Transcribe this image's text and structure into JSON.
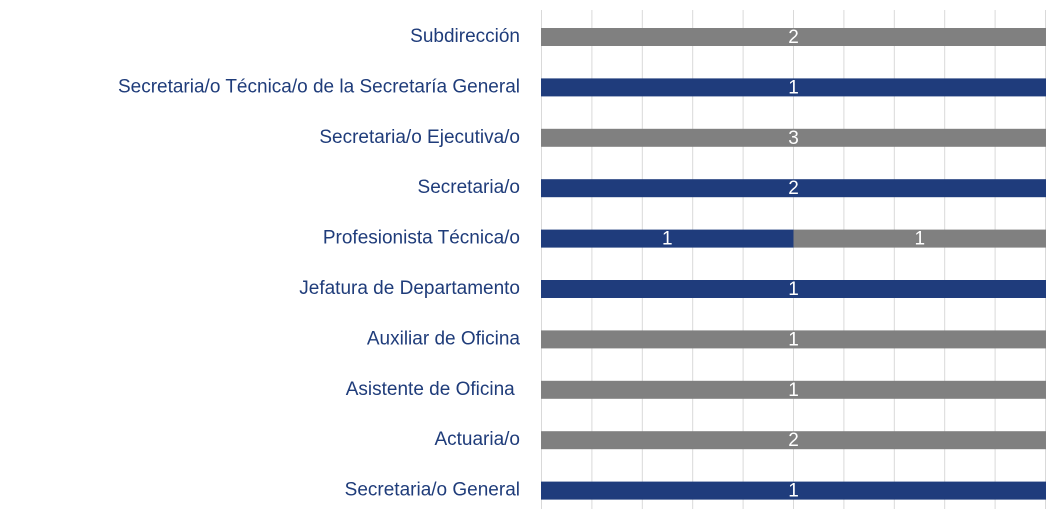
{
  "chart_data": {
    "type": "stacked_bar_percent",
    "orientation": "horizontal",
    "categories": [
      "Subdirección",
      "Secretaria/o Técnica/o de la Secretaría General",
      "Secretaria/o Ejecutiva/o",
      "Secretaria/o",
      "Profesionista Técnica/o",
      "Jefatura de Departamento",
      "Auxiliar de Oficina",
      "Asistente de Oficina ",
      "Actuaria/o",
      "Secretaria/o General"
    ],
    "series": [
      {
        "color": "#1f3c7c",
        "values": [
          0,
          1,
          0,
          2,
          1,
          1,
          0,
          0,
          0,
          1
        ]
      },
      {
        "color": "#808080",
        "values": [
          2,
          0,
          3,
          0,
          1,
          0,
          1,
          1,
          2,
          0
        ]
      }
    ],
    "grid": true
  }
}
